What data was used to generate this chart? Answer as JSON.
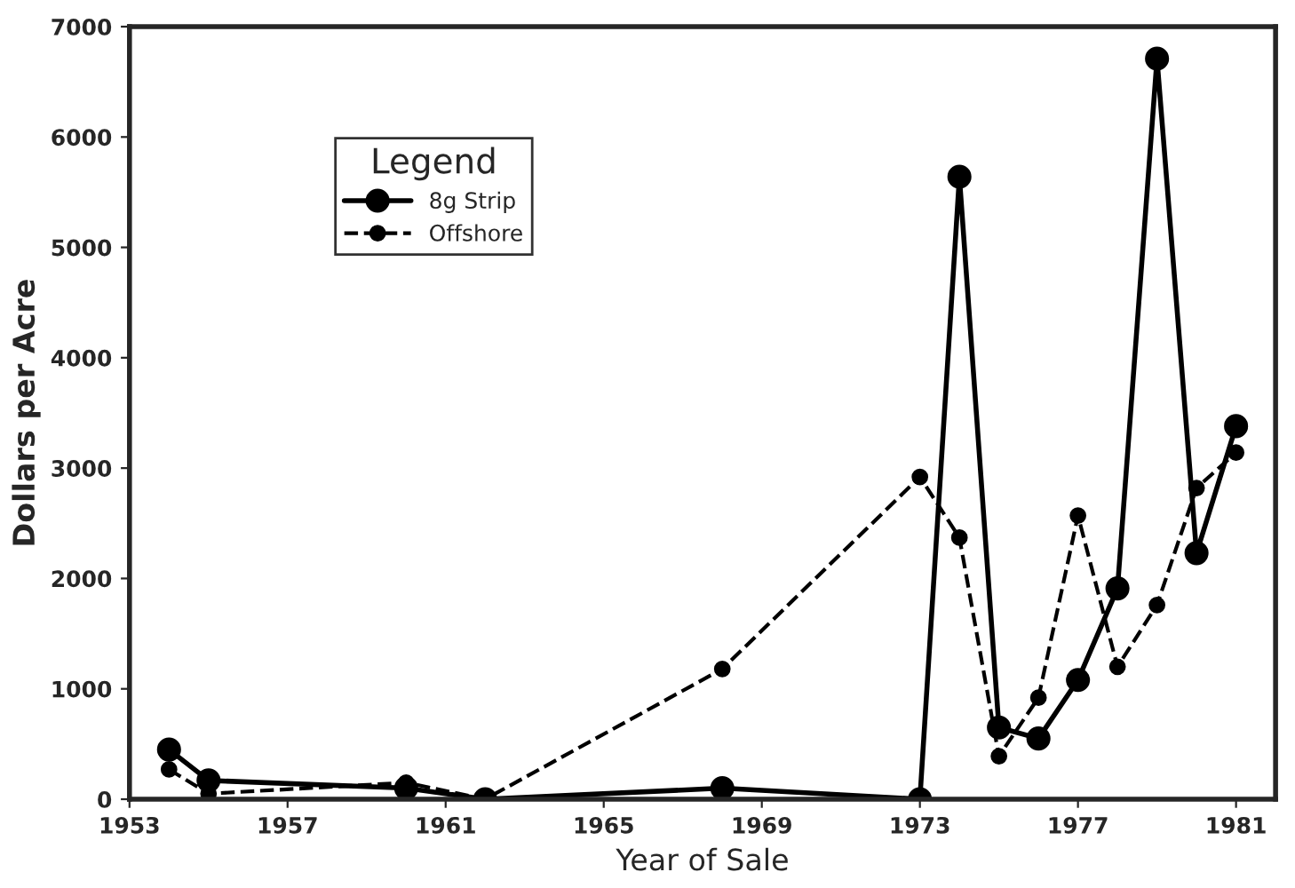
{
  "chart_data": {
    "type": "line",
    "xlabel": "Year of Sale",
    "ylabel": "Dollars per Acre",
    "legend_title": "Legend",
    "legend": "top left",
    "marker": "circle",
    "x": [
      1954,
      1955,
      1960,
      1962,
      1968,
      1973,
      1974,
      1975,
      1976,
      1977,
      1978,
      1979,
      1980,
      1981
    ],
    "series": [
      {
        "name": "8g Strip",
        "color": "#000000",
        "line_style": "solid",
        "values": [
          450,
          170,
          100,
          0,
          100,
          0,
          5640,
          650,
          550,
          1080,
          1910,
          6710,
          2230,
          3380
        ]
      },
      {
        "name": "Offshore",
        "color": "#000000",
        "line_style": "dashed",
        "values": [
          270,
          50,
          150,
          0,
          1180,
          2920,
          2370,
          390,
          920,
          2570,
          1200,
          1760,
          2820,
          3140
        ]
      }
    ],
    "xlim": [
      1953,
      1982
    ],
    "xticks": [
      1953,
      1957,
      1961,
      1965,
      1969,
      1973,
      1977,
      1981
    ],
    "ylim": [
      0,
      7000
    ],
    "yticks": [
      0,
      1000,
      2000,
      3000,
      4000,
      5000,
      6000,
      7000
    ],
    "grid": false
  }
}
